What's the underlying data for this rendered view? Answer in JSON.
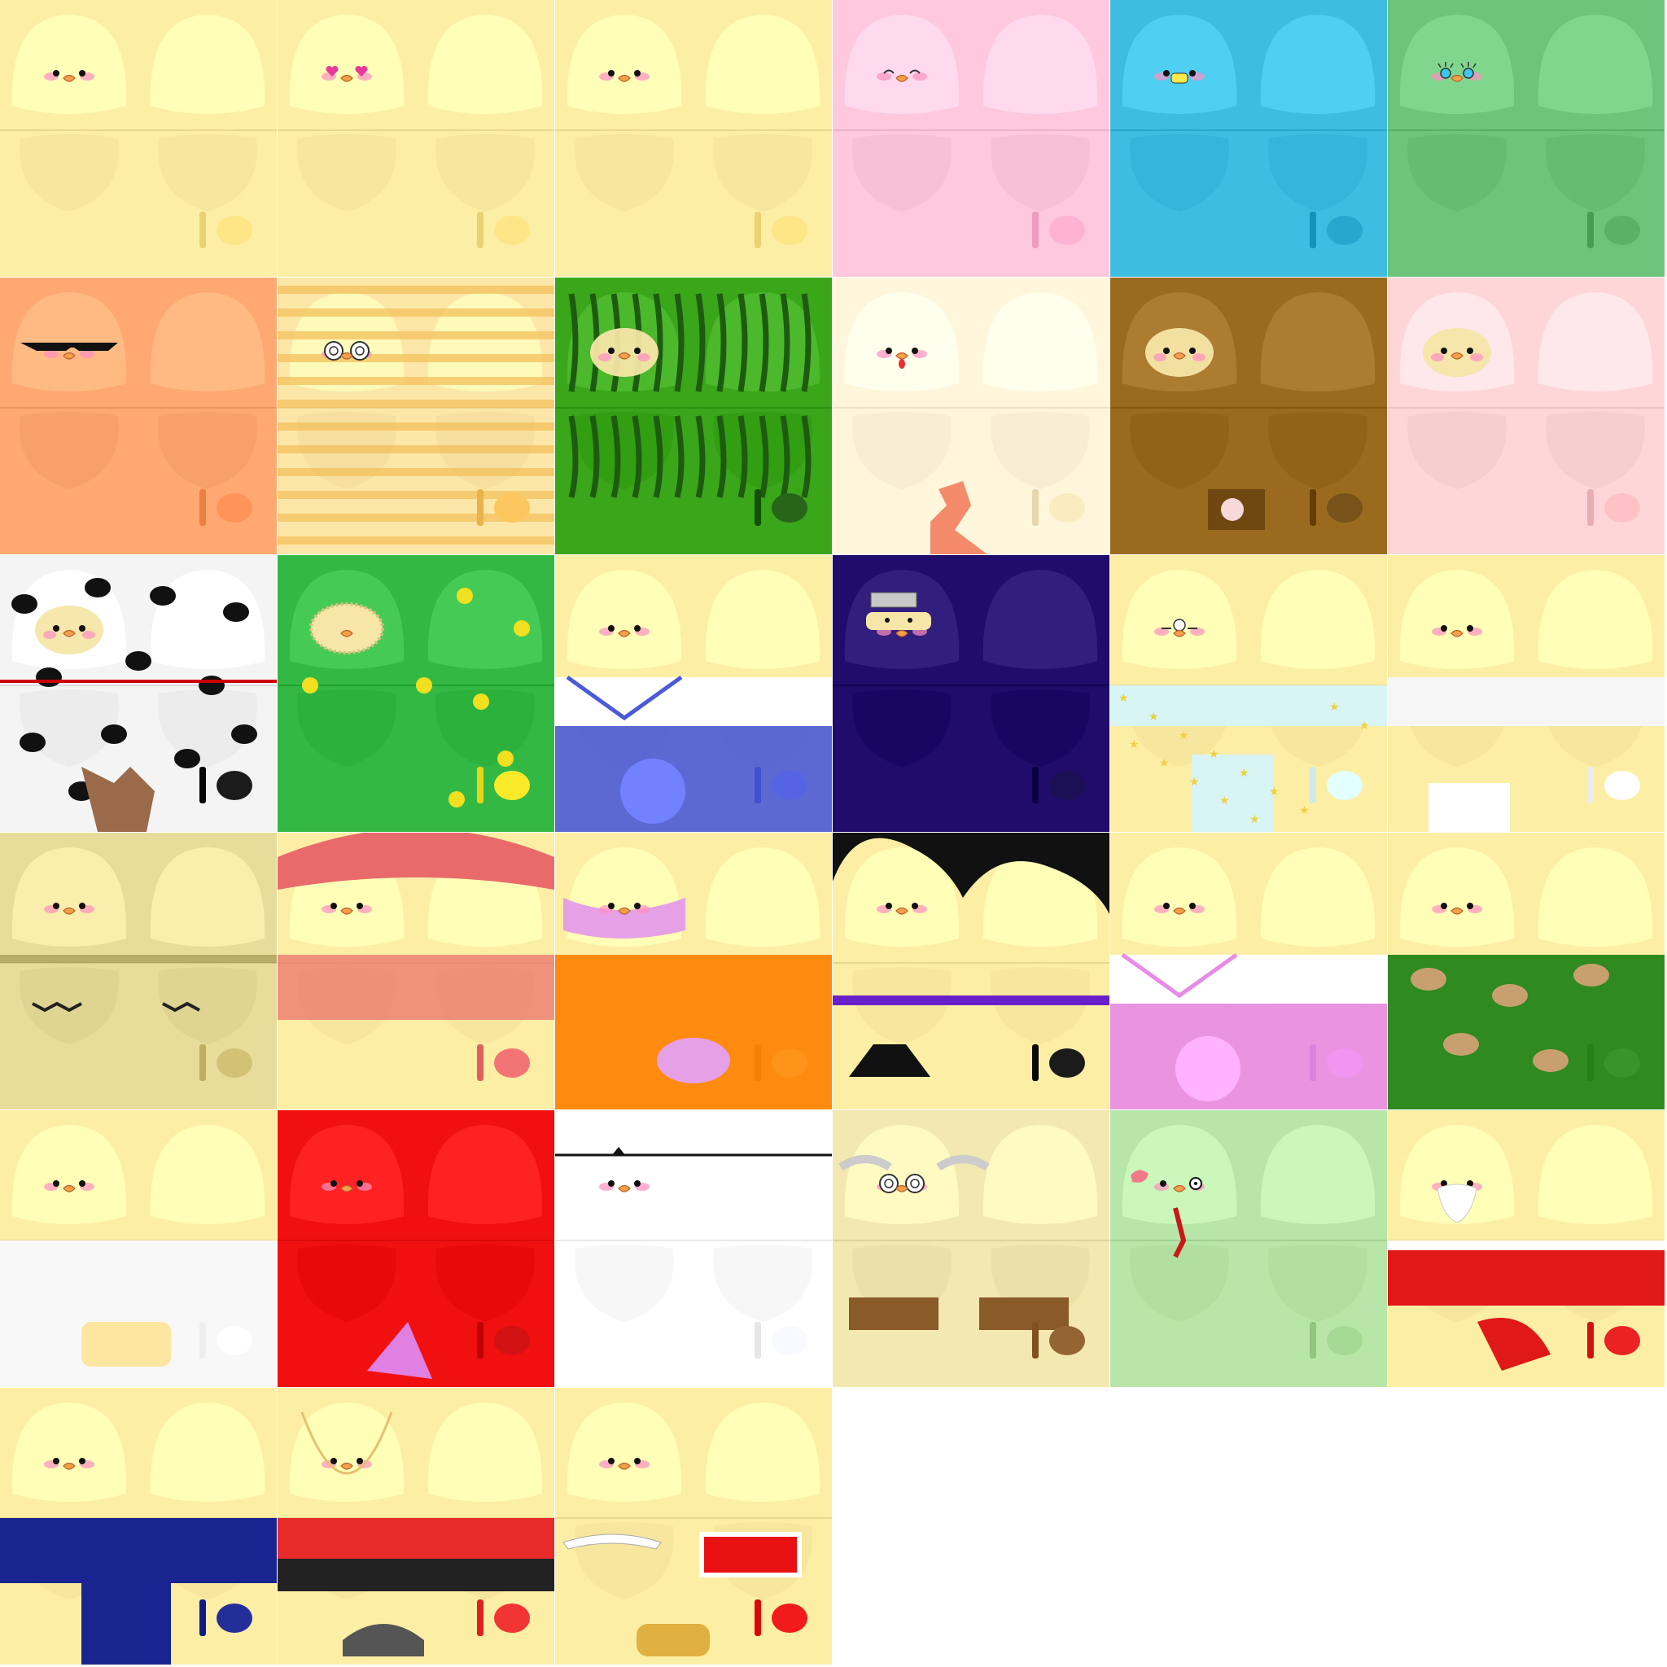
{
  "sheet": {
    "title": "",
    "background": "#ffffff",
    "columns": 6,
    "rows": 7
  },
  "tiles": [
    {
      "variant": "plain-yellow",
      "body": "#fdeea6",
      "accent": "#f4dc7c",
      "pattern": "none",
      "face": "normal",
      "extra": "none"
    },
    {
      "variant": "heart-eyes-yellow",
      "body": "#fdeea6",
      "accent": "#f4dc7c",
      "pattern": "none",
      "face": "hearts",
      "extra": "none"
    },
    {
      "variant": "sweat-drop-yellow",
      "body": "#fdeea6",
      "accent": "#f4dc7c",
      "pattern": "none",
      "face": "surprised",
      "extra": "none"
    },
    {
      "variant": "pink",
      "body": "#ffc8dc",
      "accent": "#f7a8c8",
      "pattern": "none",
      "face": "happy",
      "extra": "none"
    },
    {
      "variant": "blue",
      "body": "#3dbde0",
      "accent": "#1f9cc4",
      "pattern": "none",
      "face": "grin",
      "extra": "none"
    },
    {
      "variant": "green",
      "body": "#6ec47a",
      "accent": "#4fa85c",
      "pattern": "none",
      "face": "lashes",
      "extra": "none"
    },
    {
      "variant": "orange-sunglasses",
      "body": "#ffa872",
      "accent": "#f58a4e",
      "pattern": "none",
      "face": "sunglasses",
      "extra": "none"
    },
    {
      "variant": "striped-swirl-glasses",
      "body": "#fde7a8",
      "accent": "#f2bd55",
      "pattern": "stripes",
      "face": "swirl",
      "extra": "none"
    },
    {
      "variant": "watermelon",
      "body": "#3aa61a",
      "accent": "#1e5a10",
      "pattern": "melon",
      "face": "hood",
      "extra": "none"
    },
    {
      "variant": "cream-bird",
      "body": "#fff6dc",
      "accent": "#f0e2b6",
      "pattern": "none",
      "face": "tongue",
      "extra": "coral"
    },
    {
      "variant": "brown-owl",
      "body": "#9a6a1e",
      "accent": "#6e4810",
      "pattern": "none",
      "face": "hood",
      "extra": "camera"
    },
    {
      "variant": "light-pink",
      "body": "#ffd6d8",
      "accent": "#f4b8bc",
      "pattern": "none",
      "face": "hood",
      "extra": "none"
    },
    {
      "variant": "dalmatian",
      "body": "#f4f4f4",
      "accent": "#111111",
      "pattern": "spots",
      "face": "hood",
      "extra": "ears"
    },
    {
      "variant": "green-spotted",
      "body": "#34b844",
      "accent": "#f0e020",
      "pattern": "dots",
      "face": "bush",
      "extra": "none"
    },
    {
      "variant": "sailor-blue",
      "body": "#fdeea6",
      "accent": "#4a5ad8",
      "pattern": "sailor",
      "face": "normal",
      "extra": "none"
    },
    {
      "variant": "navy-ninja",
      "body": "#200c6a",
      "accent": "#12064a",
      "pattern": "none",
      "face": "ninja",
      "extra": "none"
    },
    {
      "variant": "star-pajamas",
      "body": "#fdeea6",
      "accent": "#d8f4f4",
      "pattern": "stars",
      "face": "monocle",
      "extra": "none"
    },
    {
      "variant": "white-shirt",
      "body": "#fdeea6",
      "accent": "#f6f6f6",
      "pattern": "shirt",
      "face": "normal",
      "extra": "none"
    },
    {
      "variant": "muscle",
      "body": "#e8dc9a",
      "accent": "#c9b86c",
      "pattern": "muscle",
      "face": "normal",
      "extra": "none"
    },
    {
      "variant": "red-cap",
      "body": "#fdeea6",
      "accent": "#e96a6a",
      "pattern": "cap",
      "face": "normal",
      "extra": "none"
    },
    {
      "variant": "orange-lilac",
      "body": "#fdeea6",
      "accent": "#ff8a10",
      "pattern": "lilac",
      "face": "normal",
      "extra": "none"
    },
    {
      "variant": "black-hair",
      "body": "#fdeea6",
      "accent": "#111111",
      "pattern": "hair",
      "face": "normal",
      "extra": "none"
    },
    {
      "variant": "sailor-pink",
      "body": "#fdeea6",
      "accent": "#e88ae8",
      "pattern": "sailor",
      "face": "normal",
      "extra": "none"
    },
    {
      "variant": "camo",
      "body": "#fdeea6",
      "accent": "#2f8a20",
      "pattern": "camo",
      "face": "normal",
      "extra": "none"
    },
    {
      "variant": "white-top",
      "body": "#fdeea6",
      "accent": "#f8f8f8",
      "pattern": "band",
      "face": "normal",
      "extra": "none"
    },
    {
      "variant": "red",
      "body": "#f01010",
      "accent": "#c80808",
      "pattern": "none",
      "face": "normal",
      "extra": "cone"
    },
    {
      "variant": "white",
      "body": "#ffffff",
      "accent": "#eef0f4",
      "pattern": "hatline",
      "face": "normal",
      "extra": "none"
    },
    {
      "variant": "grandpa",
      "body": "#f3e8b0",
      "accent": "#8a5a28",
      "pattern": "grandpa",
      "face": "glasses",
      "extra": "none"
    },
    {
      "variant": "zombie",
      "body": "#b8e6a8",
      "accent": "#9ad08a",
      "pattern": "zombie",
      "face": "zombie",
      "extra": "none"
    },
    {
      "variant": "santa",
      "body": "#fdeea6",
      "accent": "#e01818",
      "pattern": "santa",
      "face": "beard",
      "extra": "none"
    },
    {
      "variant": "navy-uniform",
      "body": "#fdeea6",
      "accent": "#1a2490",
      "pattern": "uniform",
      "face": "normal",
      "extra": "none"
    },
    {
      "variant": "guard",
      "body": "#fdeea6",
      "accent": "#e82a2a",
      "pattern": "guard",
      "face": "necklace",
      "extra": "none"
    },
    {
      "variant": "teeth",
      "body": "#fdeea6",
      "accent": "#e81010",
      "pattern": "teeth",
      "face": "normal",
      "extra": "none"
    }
  ]
}
